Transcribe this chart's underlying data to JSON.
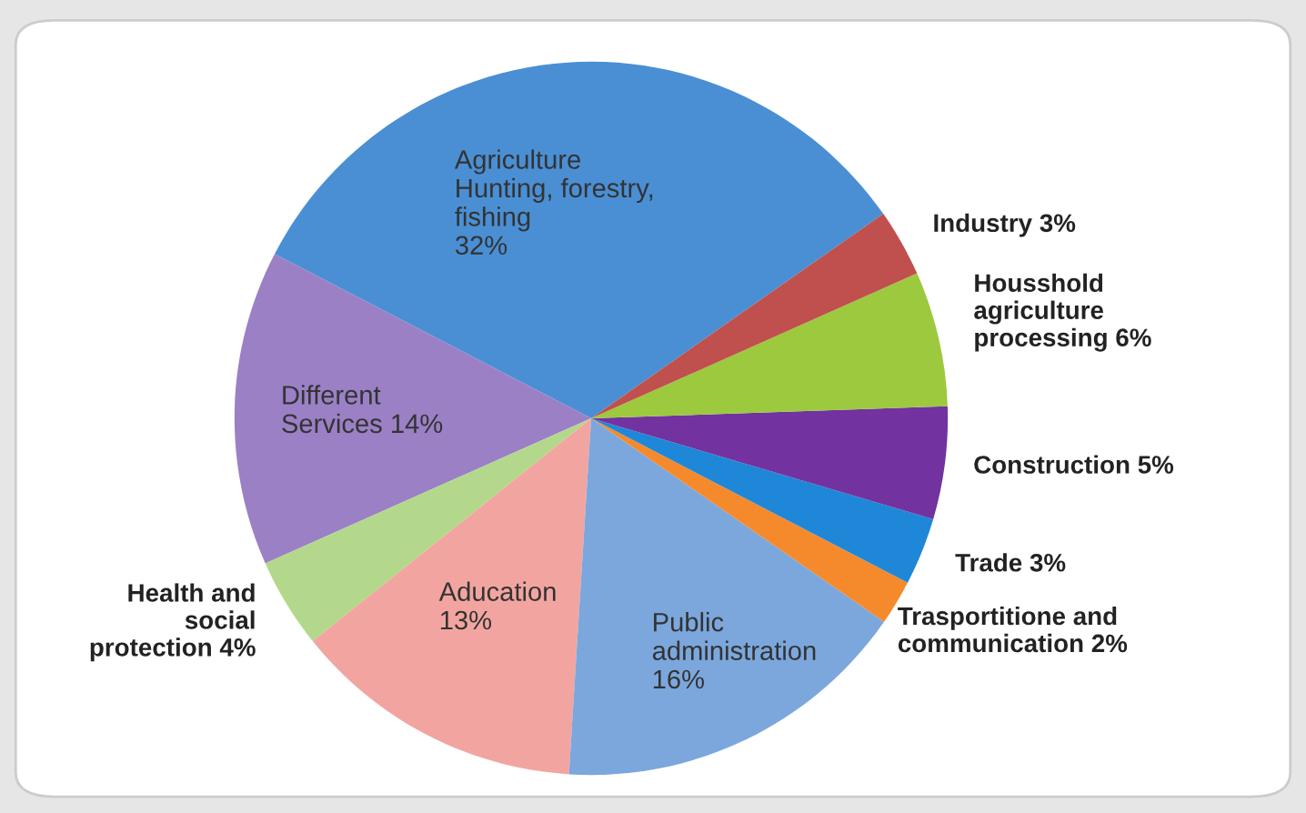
{
  "chart_data": {
    "type": "pie",
    "categories": [
      "Agriculture\nHunting, forestry,\nfishing",
      "Different\nServices",
      "Health and\nsocial\nprotection",
      "Aducation",
      "Public\nadministration",
      "Trasportitione and\ncommunication",
      "Trade",
      "Construction",
      "Housshold\nagriculture\nprocessing",
      "Industry"
    ],
    "values": [
      32,
      14,
      4,
      13,
      16,
      2,
      3,
      5,
      6,
      3
    ],
    "value_labels": [
      "32%",
      "14%",
      "4%",
      "13%",
      "16%",
      "2%",
      "3%",
      "5%",
      "6%",
      "3%"
    ],
    "colors": [
      "#4a8fd4",
      "#9b80c6",
      "#b3d88c",
      "#f2a5a0",
      "#7ba7dd",
      "#f58a2c",
      "#1f87d8",
      "#7232a0",
      "#9cc93e",
      "#c0504d"
    ]
  }
}
